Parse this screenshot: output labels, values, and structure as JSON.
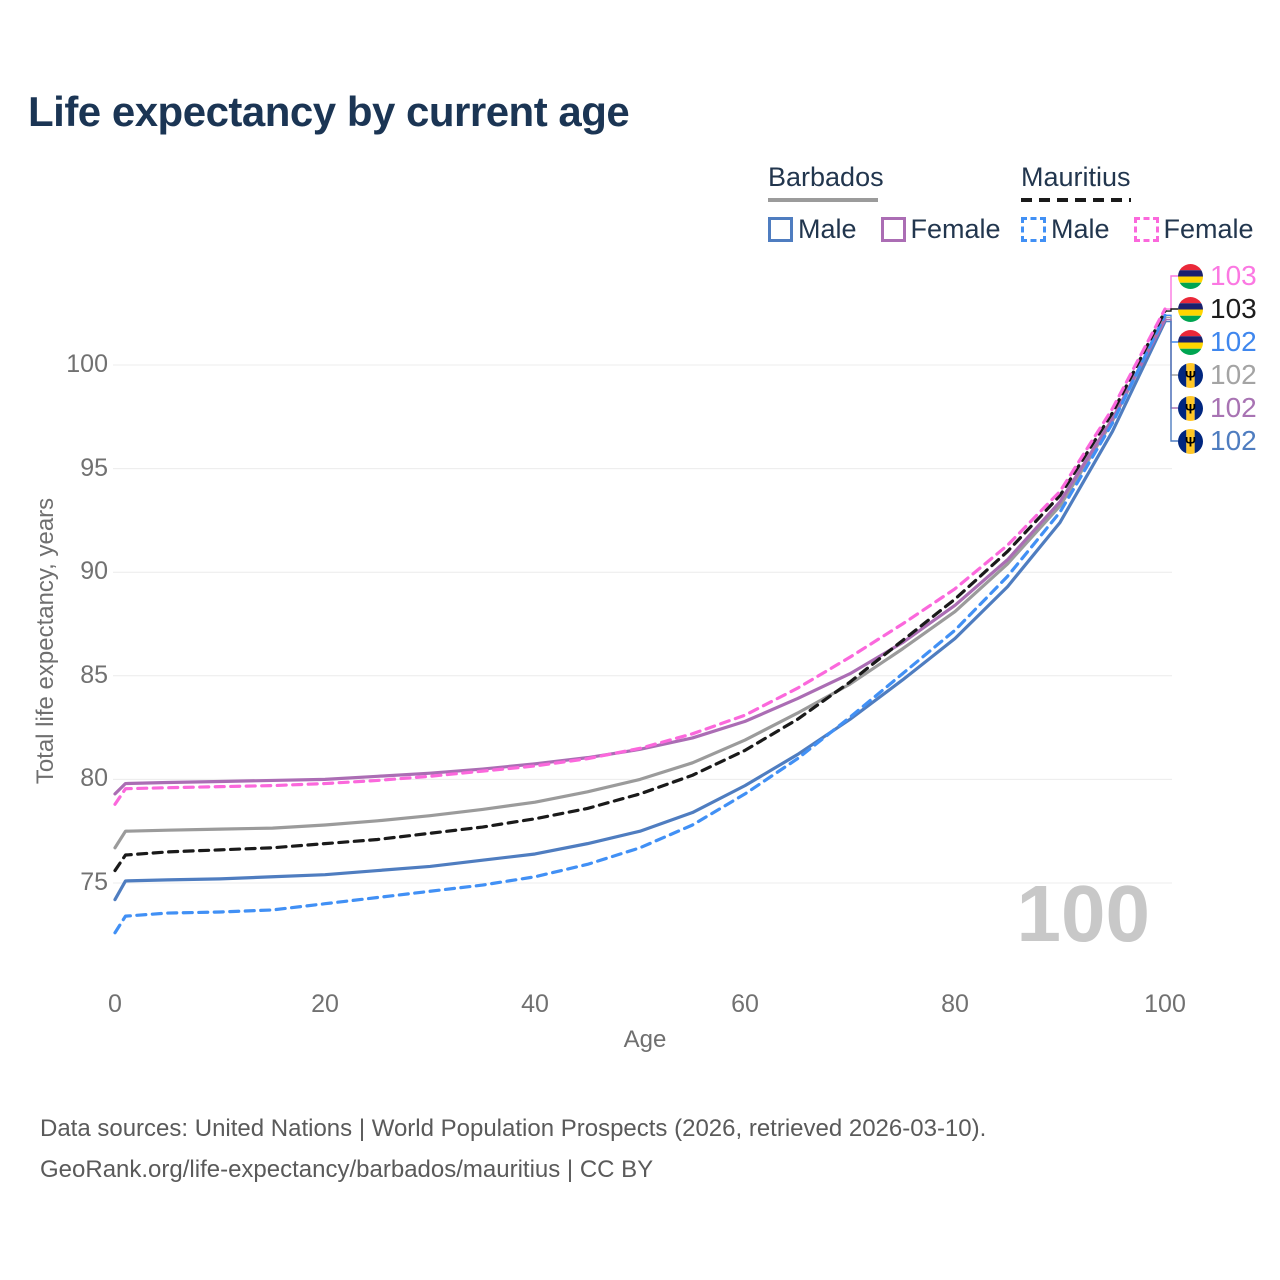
{
  "title": "Life expectancy by current age",
  "legend": {
    "barbados": {
      "label": "Barbados",
      "male": "Male",
      "female": "Female"
    },
    "mauritius": {
      "label": "Mauritius",
      "male": "Male",
      "female": "Female"
    }
  },
  "chart_data": {
    "type": "line",
    "title": "Life expectancy by current age",
    "xlabel": "Age",
    "ylabel": "Total life expectancy, years",
    "x": [
      0,
      1,
      5,
      10,
      15,
      20,
      25,
      30,
      35,
      40,
      45,
      50,
      55,
      60,
      65,
      70,
      75,
      80,
      85,
      90,
      95,
      100
    ],
    "xticks": [
      0,
      20,
      40,
      60,
      80,
      100
    ],
    "yticks": [
      75,
      80,
      85,
      90,
      95,
      100
    ],
    "xlim": [
      0,
      100
    ],
    "ylim": [
      72,
      103.5
    ],
    "grid": "horizontal",
    "legend_position": "top-right",
    "series": [
      {
        "id": "barbados-male",
        "name": "Barbados Male",
        "country": "Barbados",
        "sex": "male",
        "style": "solid",
        "color": "#4f7dc0",
        "values": [
          74.2,
          75.1,
          75.15,
          75.2,
          75.3,
          75.4,
          75.6,
          75.8,
          76.1,
          76.4,
          76.9,
          77.5,
          78.4,
          79.7,
          81.2,
          82.9,
          84.8,
          86.8,
          89.3,
          92.4,
          96.8,
          102.1
        ],
        "end_value_label": "102"
      },
      {
        "id": "barbados-total",
        "name": "Barbados",
        "country": "Barbados",
        "sex": "total",
        "style": "solid",
        "color": "#9b9b9b",
        "values": [
          76.7,
          77.5,
          77.55,
          77.6,
          77.65,
          77.8,
          78.0,
          78.25,
          78.55,
          78.9,
          79.4,
          80.0,
          80.8,
          81.9,
          83.2,
          84.6,
          86.3,
          88.1,
          90.4,
          93.2,
          97.3,
          102.3
        ],
        "end_value_label": "102"
      },
      {
        "id": "barbados-female",
        "name": "Barbados Female",
        "country": "Barbados",
        "sex": "female",
        "style": "solid",
        "color": "#ab6db4",
        "values": [
          79.3,
          79.8,
          79.85,
          79.9,
          79.95,
          80.0,
          80.15,
          80.3,
          80.5,
          80.75,
          81.05,
          81.45,
          82.0,
          82.8,
          83.9,
          85.1,
          86.6,
          88.4,
          90.6,
          93.4,
          97.4,
          102.2
        ],
        "end_value_label": "102"
      },
      {
        "id": "mauritius-male",
        "name": "Mauritius Male",
        "country": "Mauritius",
        "sex": "male",
        "style": "dashed",
        "color": "#4190f5",
        "values": [
          72.6,
          73.4,
          73.55,
          73.6,
          73.7,
          74.0,
          74.3,
          74.6,
          74.9,
          75.3,
          75.9,
          76.7,
          77.8,
          79.3,
          81.0,
          83.0,
          85.1,
          87.2,
          89.8,
          92.9,
          97.2,
          102.4
        ],
        "end_value_label": "102"
      },
      {
        "id": "mauritius-total",
        "name": "Mauritius",
        "country": "Mauritius",
        "sex": "total",
        "style": "dashed",
        "color": "#1a1a1a",
        "values": [
          75.6,
          76.35,
          76.5,
          76.6,
          76.7,
          76.9,
          77.1,
          77.4,
          77.7,
          78.1,
          78.6,
          79.3,
          80.2,
          81.4,
          82.9,
          84.7,
          86.7,
          88.7,
          91.0,
          93.7,
          97.7,
          102.6
        ],
        "end_value_label": "103"
      },
      {
        "id": "mauritius-female",
        "name": "Mauritius Female",
        "country": "Mauritius",
        "sex": "female",
        "style": "dashed",
        "color": "#fb68dc",
        "values": [
          78.8,
          79.55,
          79.6,
          79.65,
          79.7,
          79.8,
          79.95,
          80.15,
          80.4,
          80.65,
          81.0,
          81.5,
          82.2,
          83.1,
          84.4,
          85.9,
          87.5,
          89.2,
          91.3,
          93.9,
          97.9,
          102.7
        ],
        "end_value_label": "103"
      }
    ]
  },
  "right_labels": [
    {
      "flag": "mauritius",
      "series": "mauritius-female",
      "value": "103",
      "color": "#fb78e2"
    },
    {
      "flag": "mauritius",
      "series": "mauritius-total",
      "value": "103",
      "color": "#1c1c1c"
    },
    {
      "flag": "mauritius",
      "series": "mauritius-male",
      "value": "102",
      "color": "#3f87ee"
    },
    {
      "flag": "barbados",
      "series": "barbados-total",
      "value": "102",
      "color": "#a4a4a4"
    },
    {
      "flag": "barbados",
      "series": "barbados-female",
      "value": "102",
      "color": "#a873b3"
    },
    {
      "flag": "barbados",
      "series": "barbados-male",
      "value": "102",
      "color": "#4f7dc0"
    }
  ],
  "watermark": "100",
  "footer": {
    "line1": "Data sources: United Nations | World Population Prospects (2026, retrieved 2026-03-10).",
    "line2": "GeoRank.org/life-expectancy/barbados/mauritius | CC BY"
  }
}
